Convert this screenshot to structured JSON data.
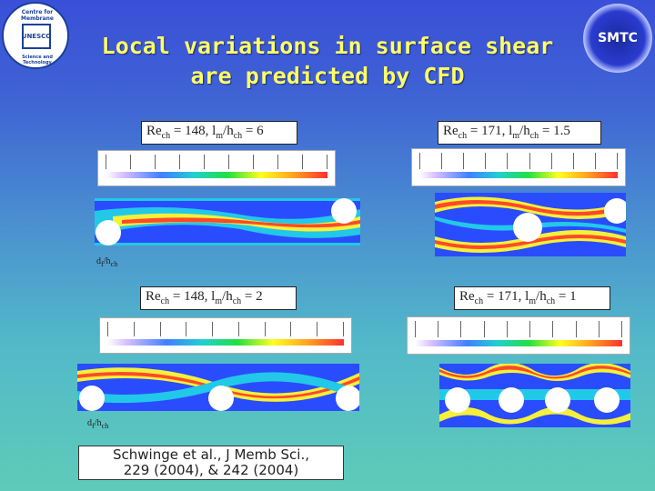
{
  "title": {
    "line1": "Local variations in surface shear",
    "line2": "are predicted by CFD"
  },
  "logo_left": {
    "arc_top": "Centre for Membrane",
    "arc_bottom": "Science and Technology",
    "inner": "UNESCO"
  },
  "logo_right": {
    "text": "SMTC"
  },
  "panels": [
    {
      "label": {
        "main": "Re",
        "sub1": "ch",
        "mid": " = 148, l",
        "sub2": "m",
        "mid2": "/h",
        "sub3": "ch",
        "tail": " = 6"
      }
    },
    {
      "label": {
        "main": "Re",
        "sub1": "ch",
        "mid": " = 171, l",
        "sub2": "m",
        "mid2": "/h",
        "sub3": "ch",
        "tail": " = 1.5"
      }
    },
    {
      "label": {
        "main": "Re",
        "sub1": "ch",
        "mid": " = 148, l",
        "sub2": "m",
        "mid2": "/h",
        "sub3": "ch",
        "tail": " = 2"
      }
    },
    {
      "label": {
        "main": "Re",
        "sub1": "ch",
        "mid": " = 171, l",
        "sub2": "m",
        "mid2": "/h",
        "sub3": "ch",
        "tail": " = 1"
      }
    }
  ],
  "dim_label": {
    "main": "d",
    "sub1": "f",
    "mid": "/h",
    "sub2": "ch"
  },
  "reference": {
    "line1": "Schwinge et al., J Memb Sci.,",
    "line2": "229 (2004), & 242 (2004)"
  },
  "colors": {
    "title": "#ffff66",
    "background_top": "#3a4fd8",
    "background_bottom": "#5ecbb8"
  }
}
